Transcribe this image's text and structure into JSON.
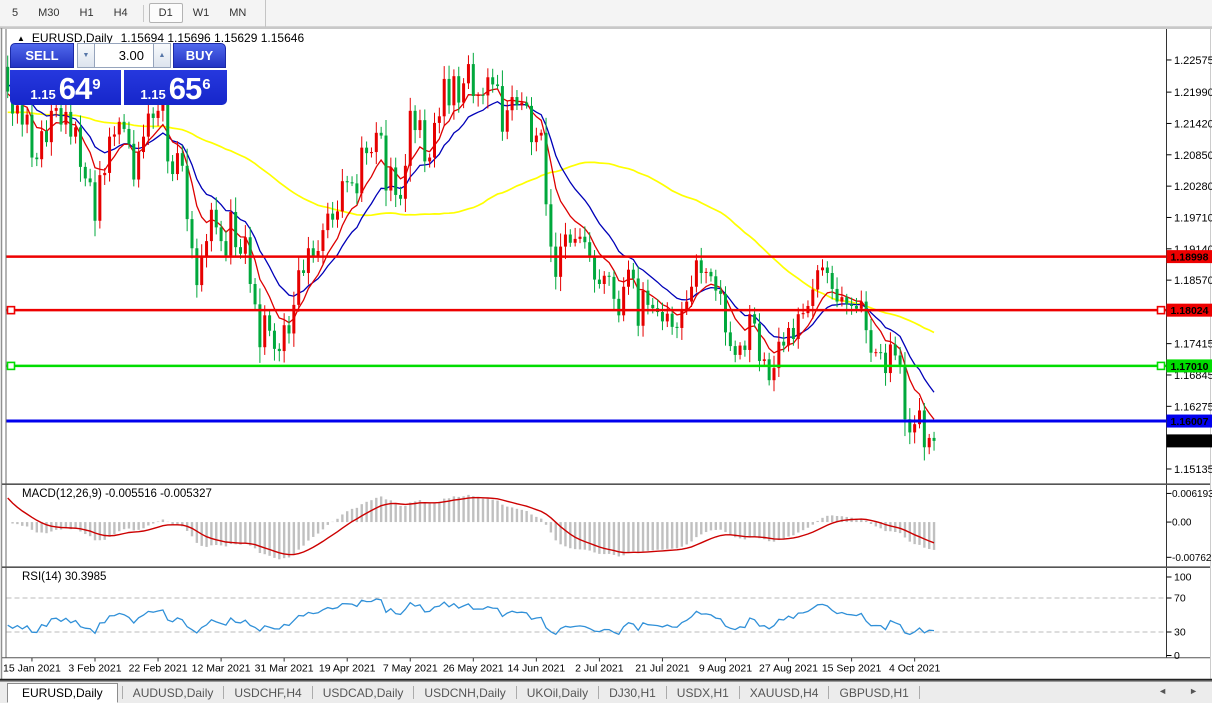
{
  "toolbar": {
    "items": [
      "5",
      "M30",
      "H1",
      "H4",
      "D1",
      "W1",
      "MN"
    ],
    "active": "D1"
  },
  "header": {
    "collapse_marker": "▲",
    "title": "EURUSD,Daily",
    "quotes": "1.15694 1.15696 1.15629 1.15646"
  },
  "trade_panel": {
    "sell_label": "SELL",
    "buy_label": "BUY",
    "volume": "3.00",
    "spin_down_icon": "▼",
    "spin_up_icon": "▲",
    "sell_price_prefix": "1.15",
    "sell_price_main": "64",
    "sell_price_sup": "9",
    "buy_price_prefix": "1.15",
    "buy_price_main": "65",
    "buy_price_sup": "6"
  },
  "colors": {
    "candle_up": "#e60000",
    "candle_down": "#00a83c",
    "ma_fast": "#dd0000",
    "ma_mid": "#0000b8",
    "ma_slow": "#ffff00",
    "macd_hist": "#c0c0c0",
    "macd_signal": "#cc0000",
    "rsi_line": "#3090d8",
    "panel_blue": "#1e30d4",
    "hline_red": "#ee0000",
    "hline_green": "#00dd00",
    "hline_blue": "#0000ee"
  },
  "chart_data": {
    "type": "candlestick",
    "symbol": "EURUSD",
    "timeframe": "Daily",
    "quote": {
      "open": "1.15694",
      "high": "1.15696",
      "low": "1.15629",
      "close": "1.15646"
    },
    "ylim": [
      1.1488,
      1.2312
    ],
    "first_open": 1.2245,
    "extreme_high": 1.2266,
    "extreme_low": 1.1529,
    "closes": [
      1.22,
      1.216,
      1.2175,
      1.214,
      1.2158,
      1.208,
      1.2077,
      1.2128,
      1.2108,
      1.2165,
      1.217,
      1.214,
      1.2163,
      1.2118,
      1.2135,
      1.2063,
      1.2042,
      1.2035,
      1.1965,
      1.2048,
      1.2052,
      1.2118,
      1.2122,
      1.2145,
      1.2132,
      1.2105,
      1.204,
      1.209,
      1.2118,
      1.216,
      1.2152,
      1.2165,
      1.2176,
      1.2073,
      1.205,
      1.2088,
      1.2065,
      1.1968,
      1.1915,
      1.1848,
      1.19,
      1.1928,
      1.1985,
      1.1953,
      1.1928,
      1.1902,
      1.1981,
      1.1917,
      1.1905,
      1.1935,
      1.185,
      1.1813,
      1.1735,
      1.1793,
      1.1765,
      1.1732,
      1.1728,
      1.1775,
      1.176,
      1.1812,
      1.1875,
      1.187,
      1.1915,
      1.19,
      1.191,
      1.1948,
      1.1978,
      1.1967,
      1.1982,
      1.2037,
      1.2035,
      1.2033,
      1.2015,
      1.2098,
      1.2088,
      1.209,
      1.2125,
      1.212,
      1.202,
      1.2062,
      1.2012,
      1.2005,
      1.2065,
      1.2165,
      1.213,
      1.2148,
      1.2073,
      1.208,
      1.2143,
      1.2155,
      1.2223,
      1.2175,
      1.2228,
      1.218,
      1.2215,
      1.225,
      1.2192,
      1.2194,
      1.2193,
      1.2226,
      1.2213,
      1.221,
      1.2127,
      1.2166,
      1.219,
      1.2175,
      1.218,
      1.2174,
      1.2108,
      1.212,
      1.2125,
      1.1995,
      1.1918,
      1.1863,
      1.1918,
      1.194,
      1.1925,
      1.1932,
      1.1936,
      1.1926,
      1.1898,
      1.1858,
      1.185,
      1.1865,
      1.1863,
      1.1823,
      1.1793,
      1.1845,
      1.1876,
      1.186,
      1.1774,
      1.1838,
      1.1812,
      1.1806,
      1.1799,
      1.1782,
      1.1796,
      1.1772,
      1.177,
      1.1802,
      1.1818,
      1.1845,
      1.1893,
      1.187,
      1.1872,
      1.1864,
      1.1838,
      1.1832,
      1.1762,
      1.1737,
      1.1721,
      1.1738,
      1.173,
      1.1795,
      1.1778,
      1.171,
      1.1713,
      1.1675,
      1.1697,
      1.1745,
      1.1738,
      1.177,
      1.175,
      1.1795,
      1.1797,
      1.181,
      1.184,
      1.1875,
      1.188,
      1.187,
      1.1841,
      1.1818,
      1.1826,
      1.1813,
      1.181,
      1.1805,
      1.1818,
      1.1766,
      1.1725,
      1.1726,
      1.1725,
      1.1688,
      1.174,
      1.172,
      1.1703,
      1.1604,
      1.158,
      1.1595,
      1.162,
      1.1553,
      1.157,
      1.15646
    ],
    "x_axis": {
      "labels": [
        "15 Jan 2021",
        "3 Feb 2021",
        "22 Feb 2021",
        "12 Mar 2021",
        "31 Mar 2021",
        "19 Apr 2021",
        "7 May 2021",
        "26 May 2021",
        "14 Jun 2021",
        "2 Jul 2021",
        "21 Jul 2021",
        "9 Aug 2021",
        "27 Aug 2021",
        "15 Sep 2021",
        "4 Oct 2021"
      ],
      "first_label_bar": 5,
      "bar_step": 13
    },
    "price_axis_ticks": [
      "1.22575",
      "1.21990",
      "1.21420",
      "1.20850",
      "1.20280",
      "1.19710",
      "1.19140",
      "1.18570",
      "1.17415",
      "1.16845",
      "1.16275",
      "1.15135"
    ],
    "hlines": [
      {
        "price": 1.18998,
        "label": "1.18998",
        "color": "#ee0000",
        "text_color": "#ffffff",
        "width": 2.5,
        "handles": false
      },
      {
        "price": 1.18024,
        "label": "1.18024",
        "color": "#ee0000",
        "text_color": "#ffffff",
        "width": 2.5,
        "handles": true
      },
      {
        "price": 1.1701,
        "label": "1.17010",
        "color": "#00dd00",
        "text_color": "#000000",
        "width": 2.5,
        "handles": true
      },
      {
        "price": 1.16007,
        "label": "1.16007",
        "color": "#0000ee",
        "text_color": "#ffffff",
        "width": 3,
        "handles": false
      }
    ],
    "current_price": {
      "price": 1.15646,
      "label": "1.15646",
      "bg": "#000000",
      "text_color": "#ffffff"
    },
    "overlays": [
      {
        "name": "ma-fast",
        "method": "ema",
        "period": 8,
        "color": "#dd0000"
      },
      {
        "name": "ma-mid",
        "method": "ema",
        "period": 16,
        "color": "#0000b8"
      },
      {
        "name": "ma-slow",
        "method": "sma",
        "period": 60,
        "color": "#ffff00"
      }
    ],
    "indicators": [
      {
        "name": "MACD",
        "label": "MACD(12,26,9) -0.005516 -0.005327",
        "fast": 12,
        "slow": 26,
        "signal": 9,
        "last_main": -0.005516,
        "last_signal": -0.005327,
        "axis_ticks": [
          "0.006193",
          "0.00",
          "-0.007621"
        ],
        "ylim": [
          -0.0095,
          0.0078
        ],
        "hist_color": "#c0c0c0",
        "line_color": "#cc0000"
      },
      {
        "name": "RSI",
        "label": "RSI(14) 30.3985",
        "period": 14,
        "last": 30.3985,
        "levels": [
          70,
          30
        ],
        "axis_ticks": [
          "100",
          "70",
          "30",
          "0"
        ],
        "ylim": [
          0,
          100
        ],
        "line_color": "#3090d8"
      }
    ]
  },
  "tab_bar": {
    "tabs": [
      {
        "label": "EURUSD,Daily",
        "active": true
      },
      {
        "label": "AUDUSD,Daily",
        "active": false
      },
      {
        "label": "USDCHF,H4",
        "active": false
      },
      {
        "label": "USDCAD,Daily",
        "active": false
      },
      {
        "label": "USDCNH,Daily",
        "active": false
      },
      {
        "label": "UKOil,Daily",
        "active": false
      },
      {
        "label": "DJ30,H1",
        "active": false
      },
      {
        "label": "USDX,H1",
        "active": false
      },
      {
        "label": "XAUUSD,H4",
        "active": false
      },
      {
        "label": "GBPUSD,H1",
        "active": false
      }
    ],
    "scroll_left_icon": "◄",
    "scroll_right_icon": "►"
  }
}
